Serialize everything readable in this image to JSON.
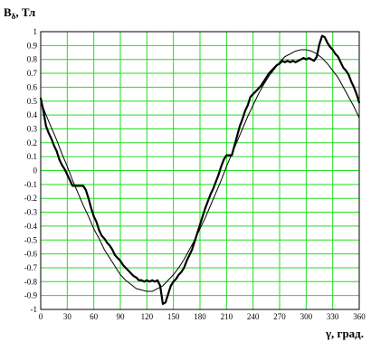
{
  "chart_data": {
    "type": "line",
    "ylabel": "B",
    "ylabel_sub": "δ",
    "ylabel_unit": ", Тл",
    "xlabel": "γ, град.",
    "xlim": [
      0,
      360
    ],
    "ylim": [
      -1,
      1
    ],
    "grid": true,
    "colors": {
      "grid": "#22dd22",
      "plot_bg": "#ffffff",
      "line": "#000000"
    },
    "x_ticks": [
      "0",
      "30",
      "60",
      "90",
      "120",
      "150",
      "180",
      "210",
      "240",
      "270",
      "300",
      "330",
      "360"
    ],
    "y_ticks": [
      "1",
      "0.9",
      "0.8",
      "0.7",
      "0.6",
      "0.5",
      "0.4",
      "0.3",
      "0.2",
      "0.1",
      "0",
      "-0.1",
      "-0.2",
      "-0.3",
      "-0.4",
      "-0.5",
      "-0.6",
      "-0.7",
      "-0.8",
      "-0.9",
      "-1"
    ],
    "series": [
      {
        "id": "measured",
        "x": [
          0,
          3,
          6,
          9,
          12,
          15,
          18,
          21,
          24,
          27,
          30,
          33,
          36,
          39,
          42,
          45,
          48,
          51,
          54,
          57,
          60,
          63,
          66,
          69,
          72,
          75,
          78,
          81,
          84,
          87,
          90,
          93,
          96,
          99,
          102,
          105,
          108,
          111,
          114,
          117,
          120,
          123,
          126,
          129,
          132,
          135,
          138,
          141,
          144,
          147,
          150,
          153,
          156,
          159,
          162,
          165,
          168,
          171,
          174,
          177,
          180,
          183,
          186,
          189,
          192,
          195,
          198,
          201,
          204,
          207,
          210,
          213,
          216,
          219,
          222,
          225,
          228,
          231,
          234,
          237,
          240,
          243,
          246,
          249,
          252,
          255,
          258,
          261,
          264,
          267,
          270,
          273,
          276,
          279,
          282,
          285,
          288,
          291,
          294,
          297,
          300,
          303,
          306,
          309,
          312,
          315,
          318,
          321,
          324,
          327,
          330,
          333,
          336,
          339,
          342,
          345,
          348,
          351,
          354,
          357,
          360
        ],
        "y": [
          0.52,
          0.43,
          0.32,
          0.27,
          0.23,
          0.18,
          0.14,
          0.08,
          0.04,
          0.01,
          -0.03,
          -0.07,
          -0.11,
          -0.11,
          -0.11,
          -0.11,
          -0.11,
          -0.14,
          -0.2,
          -0.27,
          -0.33,
          -0.37,
          -0.43,
          -0.47,
          -0.49,
          -0.52,
          -0.54,
          -0.57,
          -0.61,
          -0.63,
          -0.65,
          -0.68,
          -0.7,
          -0.72,
          -0.74,
          -0.76,
          -0.77,
          -0.79,
          -0.79,
          -0.8,
          -0.79,
          -0.8,
          -0.79,
          -0.8,
          -0.79,
          -0.83,
          -0.96,
          -0.95,
          -0.89,
          -0.83,
          -0.8,
          -0.78,
          -0.75,
          -0.73,
          -0.7,
          -0.65,
          -0.61,
          -0.57,
          -0.51,
          -0.45,
          -0.39,
          -0.33,
          -0.27,
          -0.22,
          -0.17,
          -0.13,
          -0.08,
          -0.03,
          0.03,
          0.08,
          0.11,
          0.11,
          0.11,
          0.18,
          0.25,
          0.32,
          0.37,
          0.43,
          0.47,
          0.53,
          0.55,
          0.57,
          0.59,
          0.61,
          0.64,
          0.67,
          0.7,
          0.72,
          0.74,
          0.76,
          0.77,
          0.79,
          0.78,
          0.79,
          0.78,
          0.79,
          0.78,
          0.79,
          0.8,
          0.81,
          0.8,
          0.81,
          0.8,
          0.79,
          0.82,
          0.91,
          0.97,
          0.96,
          0.92,
          0.89,
          0.87,
          0.84,
          0.82,
          0.78,
          0.74,
          0.72,
          0.69,
          0.64,
          0.6,
          0.55,
          0.49
        ]
      },
      {
        "id": "fundamental",
        "x": [
          0,
          6,
          12,
          18,
          24,
          30,
          36,
          42,
          48,
          54,
          60,
          66,
          72,
          78,
          84,
          90,
          96,
          102,
          108,
          114,
          120,
          126,
          132,
          138,
          144,
          150,
          156,
          162,
          168,
          174,
          180,
          186,
          192,
          198,
          204,
          210,
          216,
          222,
          228,
          234,
          240,
          246,
          252,
          258,
          264,
          270,
          276,
          282,
          288,
          294,
          300,
          306,
          312,
          318,
          324,
          330,
          336,
          342,
          348,
          354,
          360
        ],
        "y": [
          0.5,
          0.4,
          0.31,
          0.22,
          0.12,
          0.03,
          -0.07,
          -0.16,
          -0.25,
          -0.33,
          -0.42,
          -0.49,
          -0.57,
          -0.63,
          -0.69,
          -0.75,
          -0.79,
          -0.82,
          -0.85,
          -0.86,
          -0.87,
          -0.87,
          -0.85,
          -0.83,
          -0.79,
          -0.75,
          -0.7,
          -0.64,
          -0.57,
          -0.5,
          -0.42,
          -0.34,
          -0.25,
          -0.16,
          -0.07,
          0.03,
          0.12,
          0.21,
          0.3,
          0.39,
          0.47,
          0.55,
          0.62,
          0.68,
          0.73,
          0.78,
          0.82,
          0.84,
          0.86,
          0.87,
          0.87,
          0.86,
          0.84,
          0.81,
          0.77,
          0.72,
          0.67,
          0.6,
          0.53,
          0.46,
          0.38
        ]
      }
    ]
  }
}
